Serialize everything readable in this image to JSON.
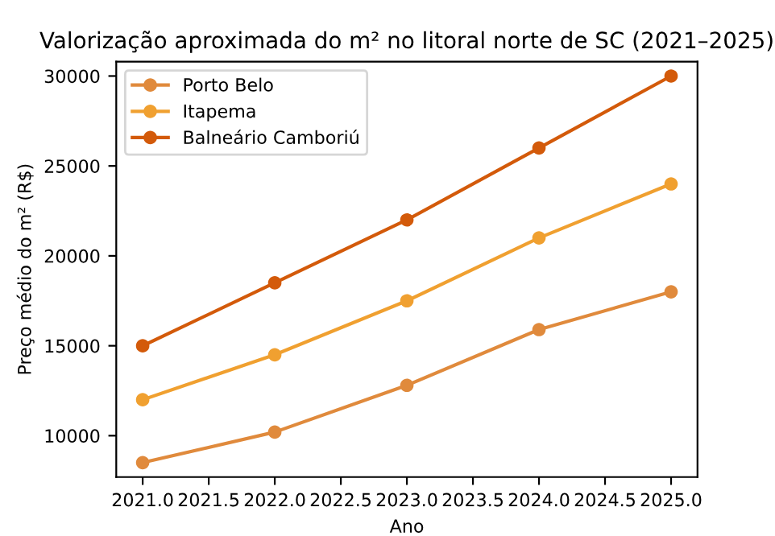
{
  "chart_data": {
    "type": "line",
    "title": "Valorização aproximada do m² no litoral norte de SC (2021–2025)",
    "xlabel": "Ano",
    "ylabel": "Preço médio do m² (R$)",
    "x": [
      2021,
      2022,
      2023,
      2024,
      2025
    ],
    "series": [
      {
        "name": "Porto Belo",
        "color": "#e08a3c",
        "values": [
          8500,
          10200,
          12800,
          15900,
          18000
        ]
      },
      {
        "name": "Itapema",
        "color": "#f0a030",
        "values": [
          12000,
          14500,
          17500,
          21000,
          24000
        ]
      },
      {
        "name": "Balneário Camboriú",
        "color": "#d35a0a",
        "values": [
          15000,
          18500,
          22000,
          26000,
          30000
        ]
      }
    ],
    "xlim": [
      2020.8,
      2025.2
    ],
    "xticks": [
      {
        "value": 2021,
        "label": "2021.0"
      },
      {
        "value": 2021.5,
        "label": "2021.5"
      },
      {
        "value": 2022,
        "label": "2022.0"
      },
      {
        "value": 2022.5,
        "label": "2022.5"
      },
      {
        "value": 2023,
        "label": "2023.0"
      },
      {
        "value": 2023.5,
        "label": "2023.5"
      },
      {
        "value": 2024,
        "label": "2024.0"
      },
      {
        "value": 2024.5,
        "label": "2024.5"
      },
      {
        "value": 2025,
        "label": "2025.0"
      }
    ],
    "ylim": [
      7700,
      30800
    ],
    "yticks": [
      10000,
      15000,
      20000,
      25000,
      30000
    ],
    "legend": "top left",
    "marker": "circle",
    "line_style": "solid",
    "grid": false
  }
}
